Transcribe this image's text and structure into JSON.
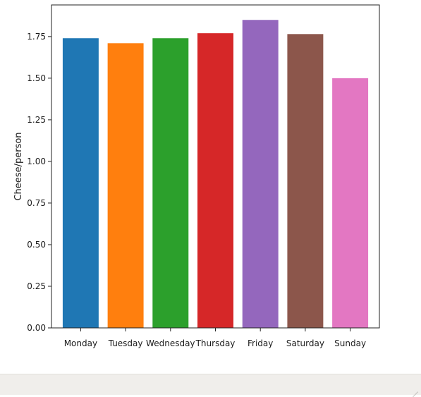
{
  "chart_data": {
    "type": "bar",
    "title": "",
    "xlabel": "",
    "ylabel": "Cheese/person",
    "categories": [
      "Monday",
      "Tuesday",
      "Wednesday",
      "Thursday",
      "Friday",
      "Saturday",
      "Sunday"
    ],
    "values": [
      1.74,
      1.71,
      1.74,
      1.77,
      1.85,
      1.765,
      1.5
    ],
    "colors": [
      "#1f77b4",
      "#ff7f0e",
      "#2ca02c",
      "#d62728",
      "#9467bd",
      "#8c564b",
      "#e377c2"
    ],
    "ylim": [
      0,
      1.94
    ],
    "yticks": [
      0,
      0.25,
      0.5,
      0.75,
      1.0,
      1.25,
      1.5,
      1.75
    ],
    "ytick_labels": [
      "0.00",
      "0.25",
      "0.50",
      "0.75",
      "1.00",
      "1.25",
      "1.50",
      "1.75"
    ],
    "grid": false,
    "legend": "none"
  }
}
